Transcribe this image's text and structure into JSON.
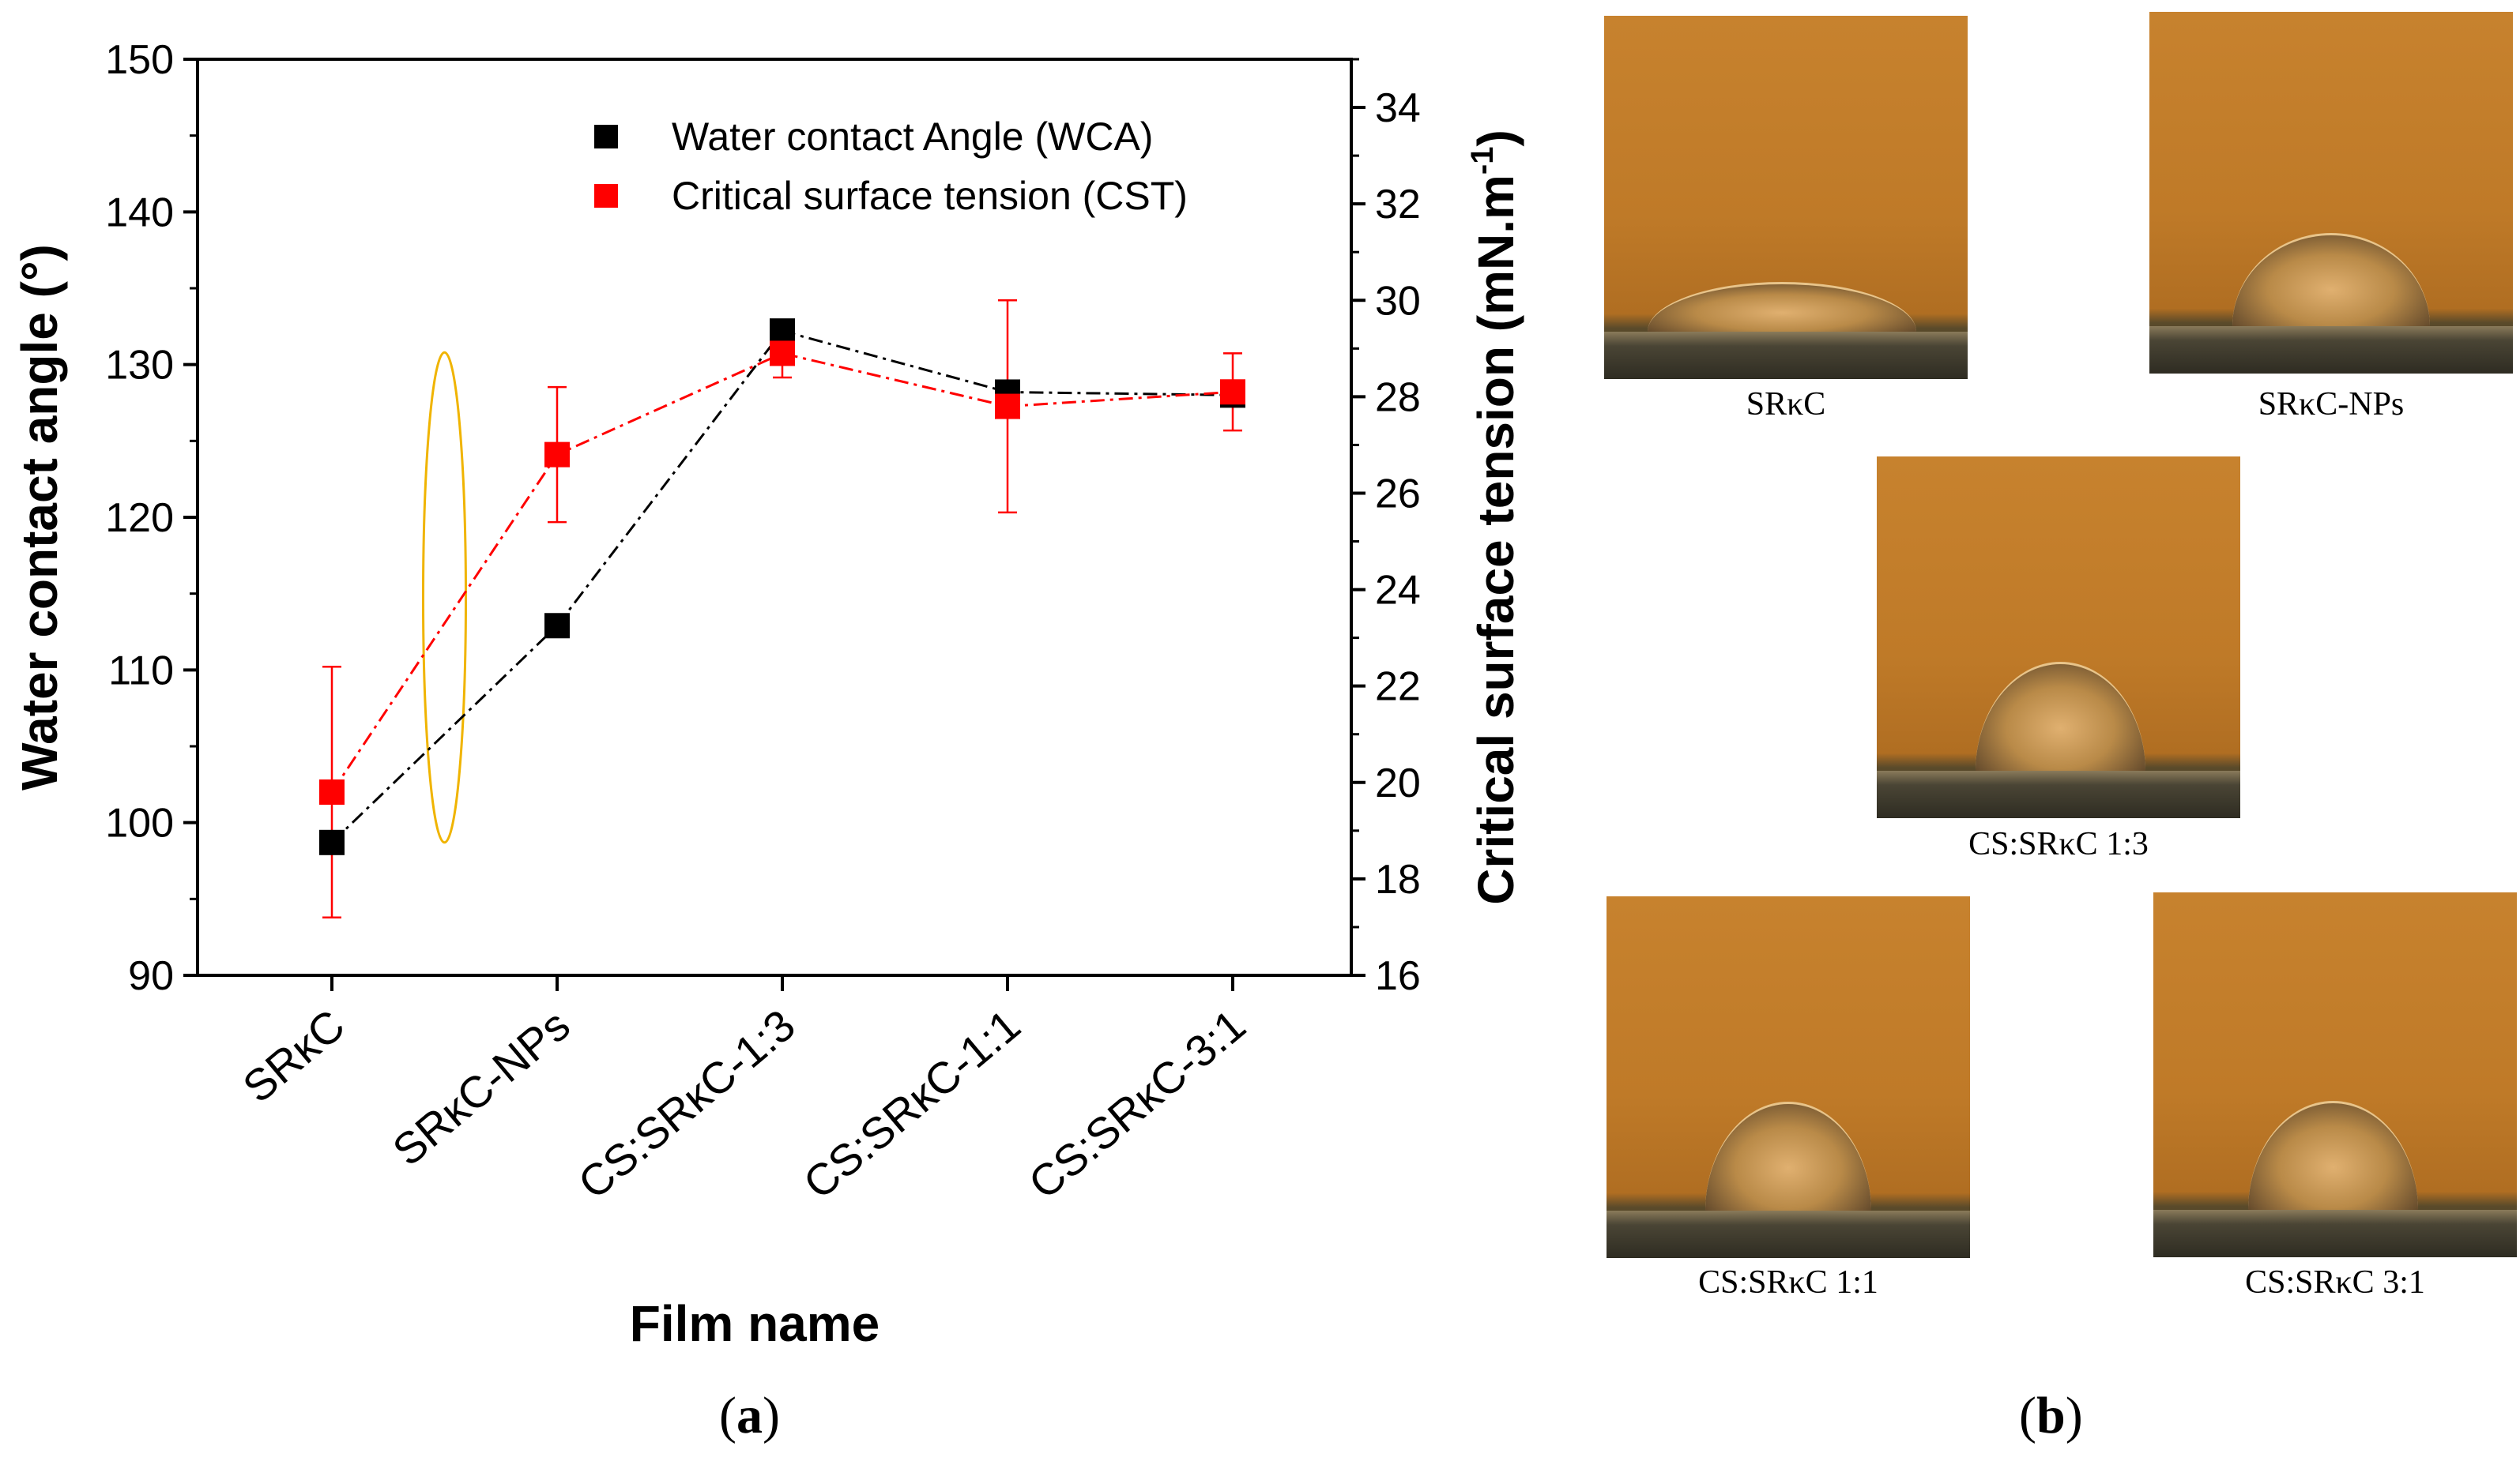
{
  "chart_data": {
    "type": "line",
    "categories": [
      "SRκC",
      "SRκC-NPs",
      "CS:SRκC-1:3",
      "CS:SRκC-1:1",
      "CS:SRκC-3:1"
    ],
    "xlabel": "Film name",
    "ylabel": "Water contact angle (°)",
    "y2label_main": "Critical surface tension (mN.m",
    "y2label_sup": "-1",
    "y2label_end": ")",
    "ylim": [
      90,
      150
    ],
    "y2lim": [
      16,
      35
    ],
    "yticks": [
      90,
      100,
      110,
      120,
      130,
      140,
      150
    ],
    "y2ticks": [
      16,
      18,
      20,
      22,
      24,
      26,
      28,
      30,
      32,
      34
    ],
    "legend_position": "top-right",
    "series": [
      {
        "name": "Water contact Angle (WCA)",
        "axis": "left",
        "color": "#000000",
        "values": [
          98.7,
          112.9,
          132.2,
          128.2,
          128.0
        ],
        "errors": [
          0,
          0,
          0,
          0,
          0
        ]
      },
      {
        "name": "Critical surface tension (CST)",
        "axis": "right",
        "color": "#ff0000",
        "values": [
          19.8,
          26.8,
          28.9,
          27.8,
          28.1
        ],
        "errors": [
          2.6,
          1.4,
          0.5,
          2.2,
          0.8
        ]
      }
    ],
    "highlight": {
      "category_between": [
        0,
        1
      ],
      "axis": "left",
      "range": [
        98.7,
        130.8
      ],
      "color": "#f0b400"
    }
  },
  "panels": {
    "a_label": "a",
    "b_label": "b"
  },
  "photos": [
    {
      "caption": "SRκC"
    },
    {
      "caption": "SRκC-NPs"
    },
    {
      "caption": "CS:SRκC 1:3"
    },
    {
      "caption": "CS:SRκC 1:1"
    },
    {
      "caption": "CS:SRκC 3:1"
    }
  ]
}
